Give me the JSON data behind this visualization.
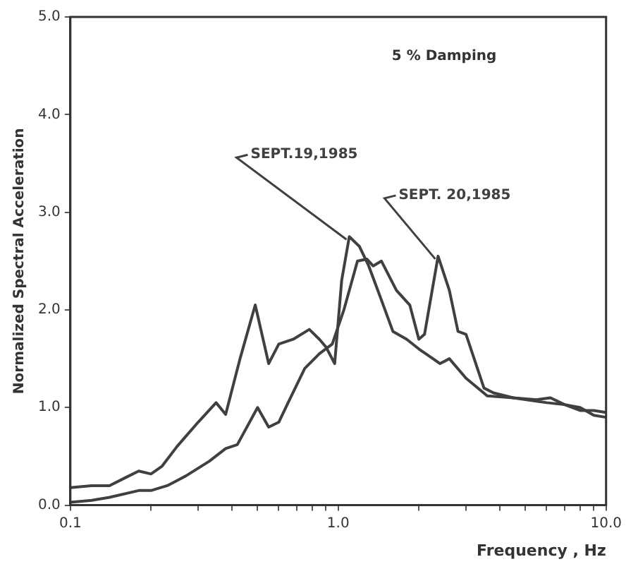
{
  "chart_data": {
    "type": "line",
    "xlabel": "Frequency , Hz",
    "ylabel": "Normalized Spectral Acceleration",
    "annotations": [
      "5 % Damping"
    ],
    "log": "x",
    "xlim": [
      0.1,
      10
    ],
    "xticks": [
      {
        "value": 0.1,
        "label": "0.1"
      },
      {
        "value": 0.2,
        "label": null
      },
      {
        "value": 0.3,
        "label": null
      },
      {
        "value": 0.4,
        "label": null
      },
      {
        "value": 0.5,
        "label": null
      },
      {
        "value": 0.6,
        "label": null
      },
      {
        "value": 0.7,
        "label": null
      },
      {
        "value": 0.8,
        "label": null
      },
      {
        "value": 0.9,
        "label": null
      },
      {
        "value": 1,
        "label": "1.0"
      },
      {
        "value": 2,
        "label": null
      },
      {
        "value": 3,
        "label": null
      },
      {
        "value": 4,
        "label": null
      },
      {
        "value": 5,
        "label": null
      },
      {
        "value": 6,
        "label": null
      },
      {
        "value": 7,
        "label": null
      },
      {
        "value": 8,
        "label": null
      },
      {
        "value": 9,
        "label": null
      },
      {
        "value": 10,
        "label": "10.0"
      }
    ],
    "ylim": [
      0,
      5
    ],
    "yticks": [
      {
        "value": 0,
        "label": "0.0"
      },
      {
        "value": 1,
        "label": "1.0"
      },
      {
        "value": 2,
        "label": "2.0"
      },
      {
        "value": 3,
        "label": "3.0"
      },
      {
        "value": 4,
        "label": "4.0"
      },
      {
        "value": 5,
        "label": "5.0"
      }
    ],
    "grid": false,
    "legend": false,
    "marker": "none",
    "line_style": "solid",
    "series": [
      {
        "name": "SEPT.19,1985",
        "color": "#404040",
        "x": [
          0.1,
          0.12,
          0.14,
          0.16,
          0.18,
          0.2,
          0.22,
          0.25,
          0.3,
          0.35,
          0.38,
          0.43,
          0.49,
          0.55,
          0.6,
          0.68,
          0.78,
          0.85,
          0.9,
          0.97,
          1.03,
          1.1,
          1.2,
          1.3,
          1.45,
          1.6,
          1.8,
          2.0,
          2.4,
          2.6,
          3.0,
          3.6,
          4.5,
          5.5,
          6.2,
          7,
          8,
          9,
          10
        ],
        "values": [
          0.18,
          0.2,
          0.2,
          0.28,
          0.35,
          0.32,
          0.4,
          0.6,
          0.85,
          1.05,
          0.93,
          1.5,
          2.05,
          1.45,
          1.65,
          1.7,
          1.8,
          1.7,
          1.62,
          1.45,
          2.3,
          2.75,
          2.65,
          2.45,
          2.1,
          1.78,
          1.7,
          1.6,
          1.45,
          1.5,
          1.3,
          1.12,
          1.1,
          1.08,
          1.1,
          1.03,
          1.0,
          0.92,
          0.9
        ]
      },
      {
        "name": "SEPT. 20,1985",
        "color": "#404040",
        "x": [
          0.1,
          0.12,
          0.14,
          0.18,
          0.2,
          0.23,
          0.27,
          0.33,
          0.38,
          0.42,
          0.5,
          0.55,
          0.6,
          0.65,
          0.75,
          0.85,
          0.95,
          1.05,
          1.18,
          1.28,
          1.35,
          1.45,
          1.65,
          1.85,
          2.0,
          2.1,
          2.36,
          2.6,
          2.8,
          3.0,
          3.5,
          3.8,
          4.5,
          6,
          7,
          8,
          9,
          10
        ],
        "values": [
          0.03,
          0.05,
          0.08,
          0.15,
          0.15,
          0.2,
          0.3,
          0.45,
          0.58,
          0.62,
          1.0,
          0.8,
          0.85,
          1.05,
          1.4,
          1.55,
          1.65,
          2.0,
          2.5,
          2.52,
          2.45,
          2.5,
          2.2,
          2.05,
          1.7,
          1.75,
          2.55,
          2.2,
          1.78,
          1.75,
          1.2,
          1.15,
          1.1,
          1.05,
          1.03,
          0.97,
          0.97,
          0.95
        ]
      }
    ]
  }
}
